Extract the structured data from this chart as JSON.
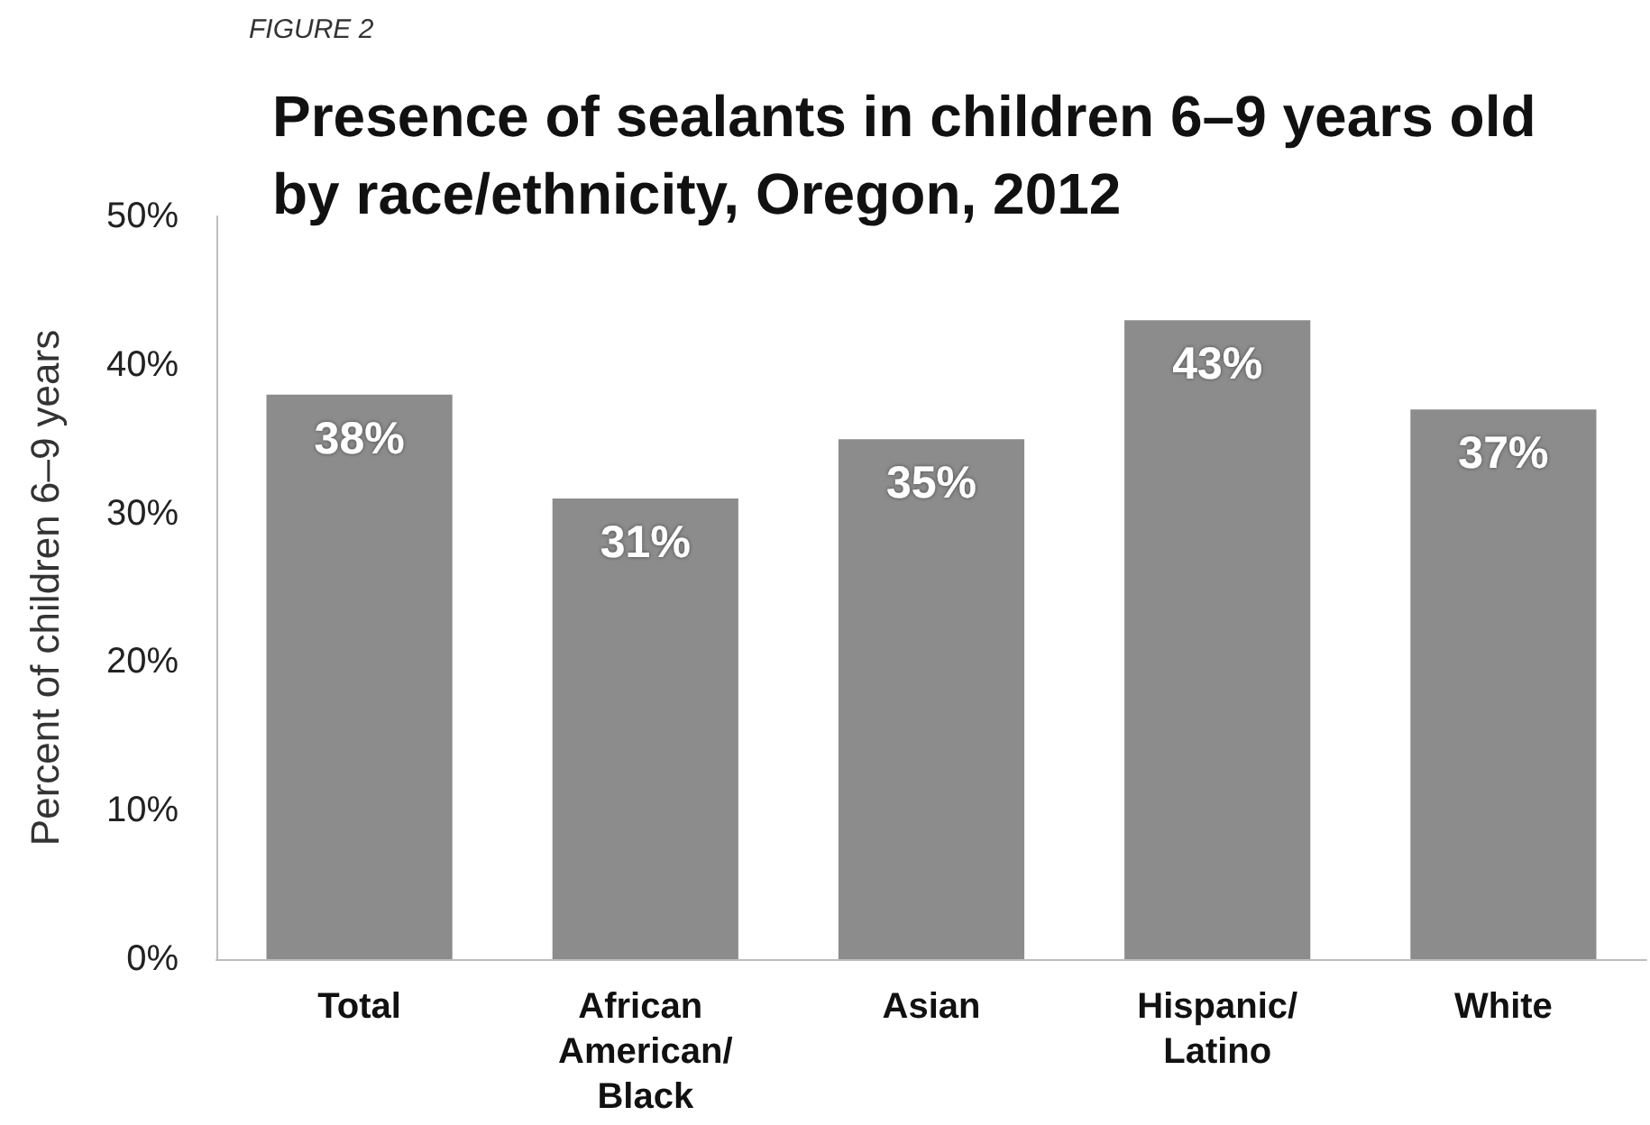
{
  "chart_data": {
    "type": "bar",
    "title": "Presence of sealants in children 6–9 years old by race/ethnicity, Oregon, 2012",
    "annotations": [
      "FIGURE 2"
    ],
    "ylabel": "Percent of children 6–9 years",
    "categories": [
      "Total",
      "African American/Black",
      "Asian",
      "Hispanic/Latino",
      "White"
    ],
    "values": [
      38,
      31,
      35,
      43,
      37
    ],
    "color": "#8c8c8c",
    "value_labels": [
      "38%",
      "31%",
      "35%",
      "43%",
      "37%"
    ],
    "ylim": [
      0,
      50
    ],
    "yticks": [
      {
        "value": 0,
        "label": "0%"
      },
      {
        "value": 10,
        "label": "10%"
      },
      {
        "value": 20,
        "label": "20%"
      },
      {
        "value": 30,
        "label": "30%"
      },
      {
        "value": 40,
        "label": "40%"
      },
      {
        "value": 50,
        "label": "50%"
      }
    ],
    "grid": false
  }
}
